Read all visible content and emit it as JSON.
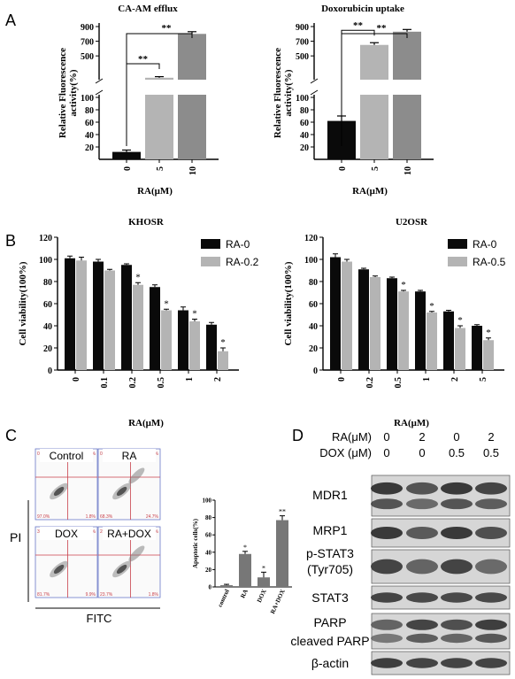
{
  "panels": {
    "A": "A",
    "B": "B",
    "C": "C",
    "D": "D"
  },
  "colors": {
    "black": "#0a0a0a",
    "light_gray": "#b4b4b4",
    "mid_gray": "#8c8c8c",
    "flow_grid_red": "#c8414b",
    "flow_border_blue": "#6a78c8"
  },
  "chart_data": [
    {
      "type": "bar",
      "title": "CA-AM efflux",
      "xlabel": "RA(μM)",
      "ylabel": "Relative Fluorescence activity(%)",
      "categories": [
        "0",
        "5",
        "10"
      ],
      "values": [
        12,
        202,
        800
      ],
      "errors": [
        3,
        15,
        30
      ],
      "yticks_lower": [
        "20",
        "40",
        "60",
        "80",
        "100"
      ],
      "yticks_upper": [
        "500",
        "700",
        "900"
      ],
      "significance": [
        "**",
        "**"
      ],
      "axis_break": [
        100,
        200
      ]
    },
    {
      "type": "bar",
      "title": "Doxorubicin uptake",
      "xlabel": "RA(μM)",
      "ylabel": "Relative Fluorescence activity(%)",
      "categories": [
        "0",
        "5",
        "10"
      ],
      "values": [
        62,
        650,
        830
      ],
      "errors": [
        8,
        30,
        30
      ],
      "yticks_lower": [
        "20",
        "40",
        "60",
        "80",
        "100"
      ],
      "yticks_upper": [
        "500",
        "700",
        "900"
      ],
      "significance": [
        "**",
        "**"
      ],
      "axis_break": [
        100,
        200
      ]
    },
    {
      "type": "bar",
      "title": "KHOSR",
      "xlabel": "RA(μM)",
      "ylabel": "Cell viability(100%)",
      "ylim": [
        0,
        120
      ],
      "yticks": [
        "0",
        "20",
        "40",
        "60",
        "80",
        "100",
        "120"
      ],
      "categories": [
        "0",
        "0.1",
        "0.2",
        "0.5",
        "1",
        "2"
      ],
      "series": [
        {
          "name": "RA-0",
          "values": [
            101,
            98,
            95,
            75,
            54,
            41
          ],
          "errors": [
            2,
            2,
            1,
            2,
            3,
            2
          ]
        },
        {
          "name": "RA-0.2",
          "values": [
            99,
            90,
            77,
            54,
            44,
            17
          ],
          "errors": [
            3,
            1,
            2,
            1,
            2,
            3
          ]
        }
      ],
      "stars": [
        "",
        "",
        "*",
        "*",
        "*",
        "*"
      ]
    },
    {
      "type": "bar",
      "title": "U2OSR",
      "xlabel": "RA(μM)",
      "ylabel": "Cell viability(100%)",
      "ylim": [
        0,
        120
      ],
      "yticks": [
        "0",
        "20",
        "40",
        "60",
        "80",
        "100",
        "120"
      ],
      "categories": [
        "0",
        "0.2",
        "0.5",
        "1",
        "2",
        "5"
      ],
      "series": [
        {
          "name": "RA-0",
          "values": [
            102,
            91,
            83,
            71,
            53,
            40
          ],
          "errors": [
            3,
            1,
            1,
            1,
            1,
            1
          ]
        },
        {
          "name": "RA-0.5",
          "values": [
            98,
            84,
            71,
            52,
            38,
            27
          ],
          "errors": [
            2,
            1,
            1,
            1,
            2,
            2
          ]
        }
      ],
      "stars": [
        "",
        "",
        "*",
        "*",
        "*",
        "*"
      ]
    },
    {
      "type": "bar",
      "title": "",
      "xlabel": "",
      "ylabel": "Apoptotic cells(%)",
      "ylim": [
        0,
        100
      ],
      "yticks": [
        "0",
        "20",
        "40",
        "60",
        "80",
        "100"
      ],
      "categories": [
        "control",
        "RA",
        "DOX",
        "RA+DOX"
      ],
      "values": [
        2,
        38,
        11,
        77
      ],
      "errors": [
        1,
        3,
        6,
        5
      ],
      "stars": [
        "",
        "*",
        "*",
        "**"
      ]
    }
  ],
  "flow": {
    "labels": [
      "Control",
      "RA",
      "DOX",
      "RA+DOX"
    ],
    "quadrants": [
      [
        "0.0%",
        "1.3%",
        "97.0%",
        "1.8%"
      ],
      [
        "0.7%",
        "6.2%",
        "68.3%",
        "24.7%"
      ],
      [
        "3.8%",
        "4.6%",
        "81.7%",
        "9.9%"
      ],
      [
        "24.9%",
        "49.6%",
        "23.7%",
        "1.8%"
      ]
    ],
    "y_axis": "PI",
    "x_axis": "FITC"
  },
  "blot": {
    "header": [
      {
        "label": "RA(μM)",
        "values": [
          "0",
          "2",
          "0",
          "2"
        ]
      },
      {
        "label": "DOX (μM)",
        "values": [
          "0",
          "0",
          "0.5",
          "0.5"
        ]
      }
    ],
    "rows": [
      "MDR1",
      "MRP1",
      "p-STAT3",
      "(Tyr705)",
      "STAT3",
      "PARP",
      "cleaved PARP",
      "β-actin"
    ]
  }
}
